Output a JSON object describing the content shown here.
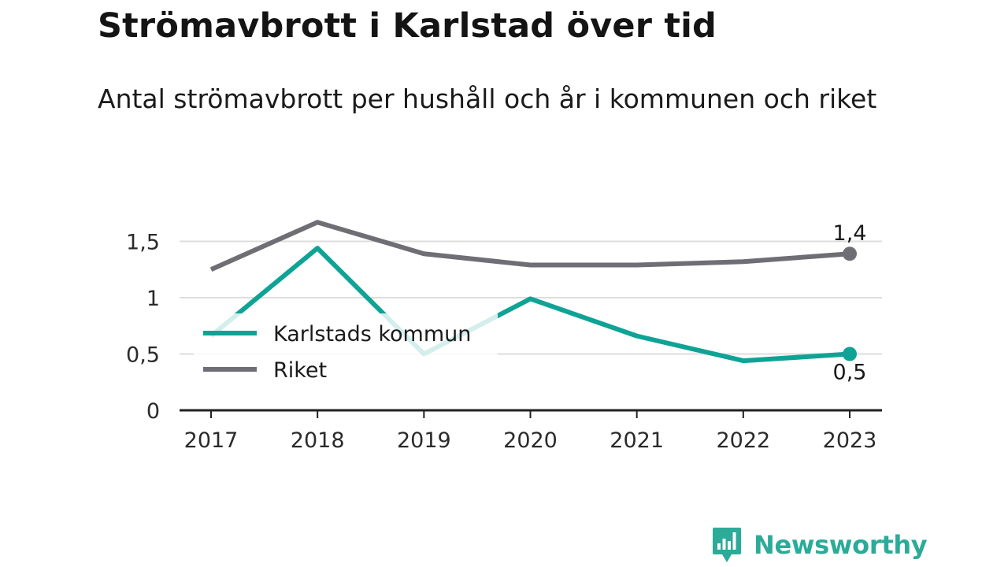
{
  "title": "Strömavbrott i Karlstad över tid",
  "subtitle": "Antal strömavbrott per hushåll och år i kommunen och riket",
  "brand": {
    "name": "Newsworthy",
    "icon": "newsworthy-logo-icon"
  },
  "colors": {
    "kommun": "#0fa396",
    "riket": "#6f6e75",
    "grid": "#dddddd",
    "axis": "#222222"
  },
  "chart_data": {
    "type": "line",
    "categories": [
      "2017",
      "2018",
      "2019",
      "2020",
      "2021",
      "2022",
      "2023"
    ],
    "series": [
      {
        "name": "Karlstads kommun",
        "values": [
          0.66,
          1.44,
          0.5,
          0.99,
          0.66,
          0.44,
          0.5
        ],
        "end_label": "0,5"
      },
      {
        "name": "Riket",
        "values": [
          1.25,
          1.67,
          1.39,
          1.29,
          1.29,
          1.32,
          1.39
        ],
        "end_label": "1,4"
      }
    ],
    "yticks": [
      {
        "value": 0,
        "label": "0"
      },
      {
        "value": 0.5,
        "label": "0,5"
      },
      {
        "value": 1,
        "label": "1"
      },
      {
        "value": 1.5,
        "label": "1,5"
      }
    ],
    "ylim": [
      0,
      1.75
    ],
    "grid": true,
    "legend": "inside-left",
    "xlabel": "",
    "ylabel": ""
  }
}
